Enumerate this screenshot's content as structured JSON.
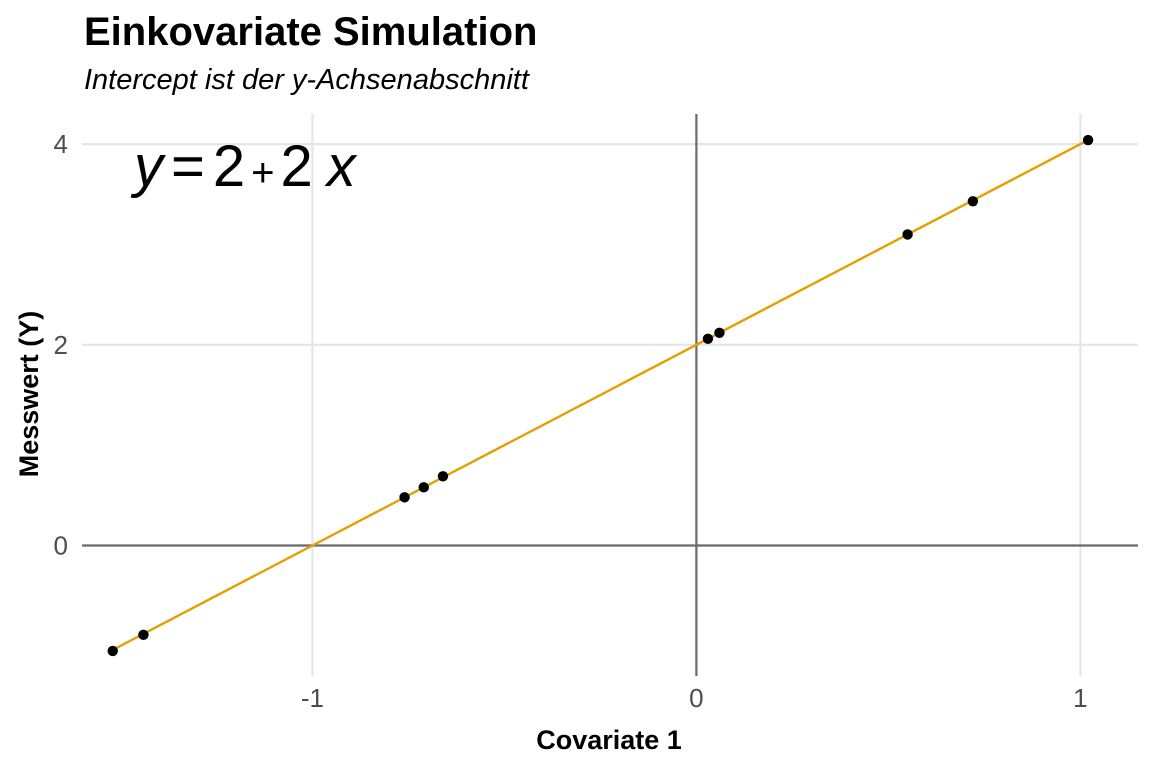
{
  "chart_data": {
    "type": "scatter",
    "title": "Einkovariate Simulation",
    "subtitle": "Intercept ist der y-Achsenabschnitt",
    "xlabel": "Covariate 1",
    "ylabel": "Messwert (Y)",
    "xlim": [
      -1.6,
      1.15
    ],
    "ylim": [
      -1.3,
      4.3
    ],
    "x_ticks": [
      -1,
      0,
      1
    ],
    "x_tick_labels": [
      "-1",
      "0",
      "1"
    ],
    "y_ticks": [
      0,
      2,
      4
    ],
    "y_tick_labels": [
      "0",
      "2",
      "4"
    ],
    "grid": true,
    "reference_lines": {
      "x": 0,
      "y": 0
    },
    "annotation": {
      "y": "y",
      "eq": "=",
      "a": "2",
      "plus": "+",
      "b": "2",
      "x": "x"
    },
    "fit_line": {
      "intercept": 2,
      "slope": 2,
      "x_range": [
        -1.52,
        1.02
      ],
      "color": "#E69F00"
    },
    "points": [
      {
        "x": -1.52,
        "y": -1.05
      },
      {
        "x": -1.44,
        "y": -0.89
      },
      {
        "x": -0.76,
        "y": 0.48
      },
      {
        "x": -0.71,
        "y": 0.58
      },
      {
        "x": -0.66,
        "y": 0.69
      },
      {
        "x": 0.03,
        "y": 2.06
      },
      {
        "x": 0.06,
        "y": 2.12
      },
      {
        "x": 0.55,
        "y": 3.1
      },
      {
        "x": 0.72,
        "y": 3.43
      },
      {
        "x": 1.02,
        "y": 4.04
      }
    ],
    "point_color": "#000000"
  }
}
